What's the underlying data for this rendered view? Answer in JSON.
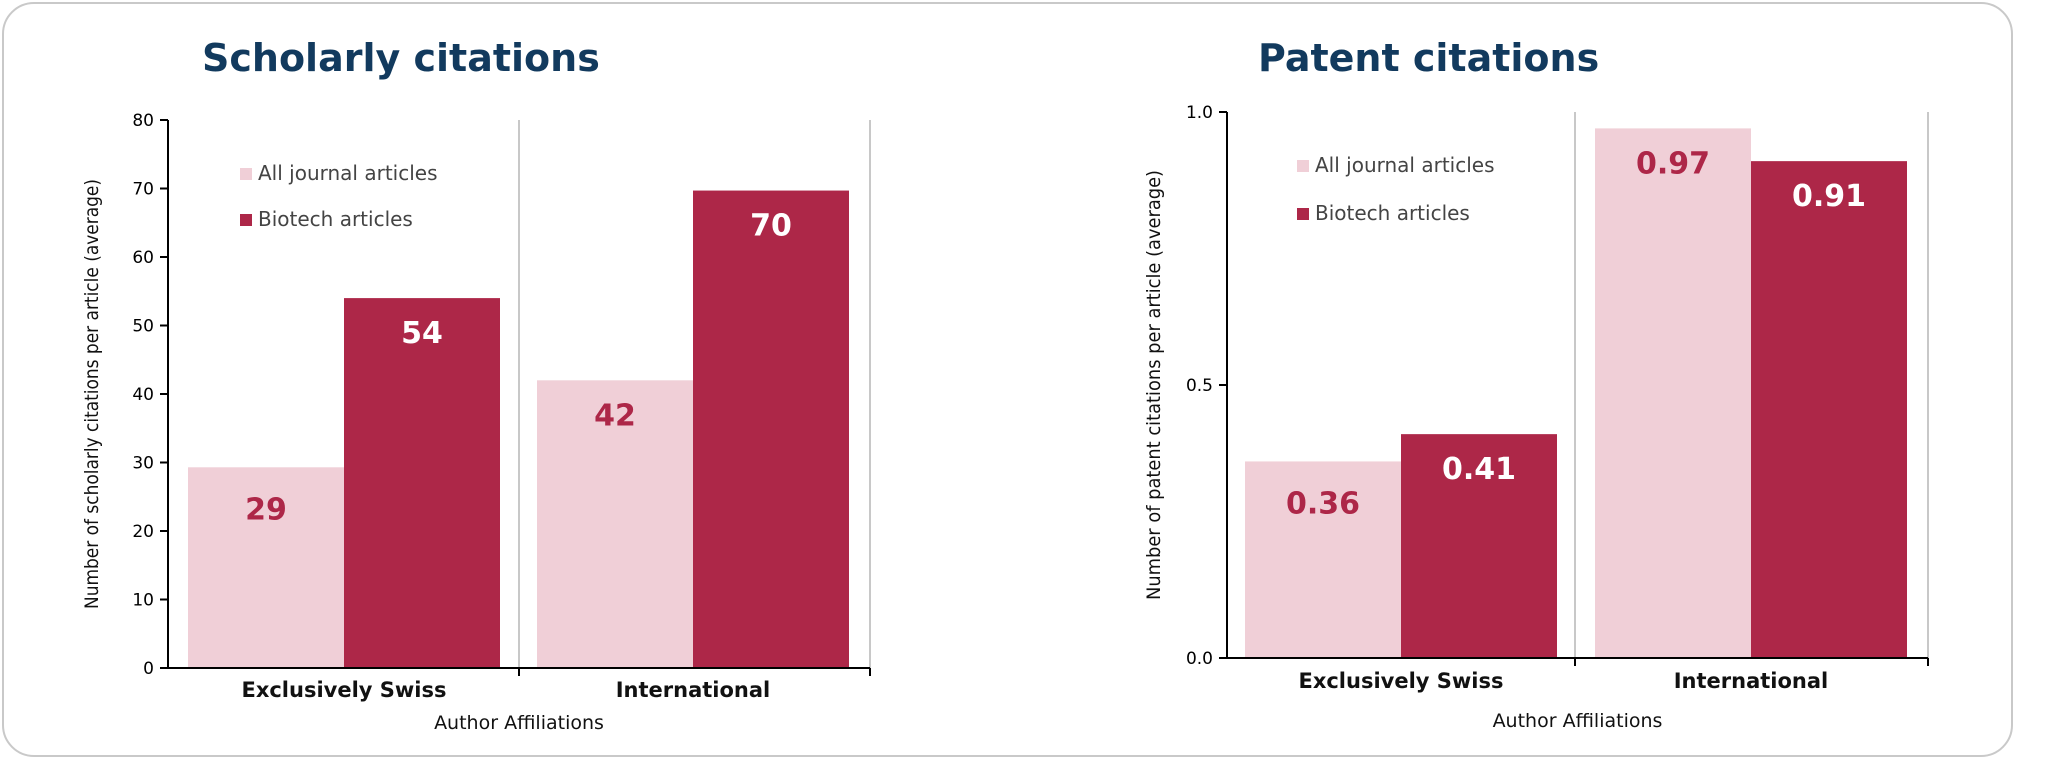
{
  "colors": {
    "all_journal": "#f0cfd7",
    "biotech": "#ad2748",
    "title": "#123a5e",
    "axis": "#000000",
    "separator": "#c8c8c8",
    "label_on_light": "#ad2748",
    "label_on_dark": "#ffffff"
  },
  "chart_data": [
    {
      "type": "bar",
      "title": "Scholarly citations",
      "xlabel": "Author Affiliations",
      "ylabel": "Number of scholarly citations per article (average)",
      "ylim": [
        0,
        80
      ],
      "yticks": [
        "0",
        "10",
        "20",
        "30",
        "40",
        "50",
        "60",
        "70",
        "80"
      ],
      "ytick_values": [
        0,
        10,
        20,
        30,
        40,
        50,
        60,
        70,
        80
      ],
      "categories": [
        "Exclusively Swiss",
        "International"
      ],
      "legend_position": "top-left",
      "series": [
        {
          "name": "All journal articles",
          "values": [
            29.3,
            42
          ],
          "labels": [
            "29",
            "42"
          ]
        },
        {
          "name": "Biotech articles",
          "values": [
            54,
            69.7
          ],
          "labels": [
            "54",
            "70"
          ]
        }
      ]
    },
    {
      "type": "bar",
      "title": "Patent citations",
      "xlabel": "Author Affiliations",
      "ylabel": "Number of patent citations per article (average)",
      "ylim": [
        0,
        1.0
      ],
      "yticks": [
        "0.0",
        "0.5",
        "1.0"
      ],
      "ytick_values": [
        0,
        0.5,
        1.0
      ],
      "categories": [
        "Exclusively Swiss",
        "International"
      ],
      "legend_position": "top-left",
      "series": [
        {
          "name": "All journal articles",
          "values": [
            0.36,
            0.97
          ],
          "labels": [
            "0.36",
            "0.97"
          ]
        },
        {
          "name": "Biotech articles",
          "values": [
            0.41,
            0.91
          ],
          "labels": [
            "0.41",
            "0.91"
          ]
        }
      ]
    }
  ]
}
